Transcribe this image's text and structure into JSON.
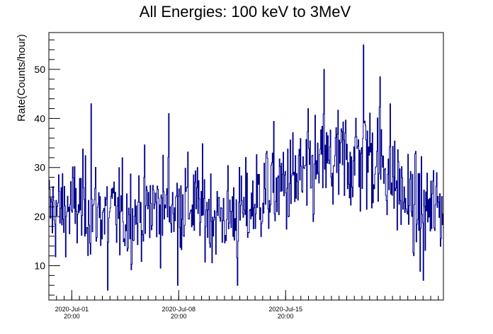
{
  "chart_data": {
    "type": "line",
    "title": "All Energies:  100 keV to 3MeV",
    "xlabel": "",
    "ylabel": "Rate(Counts/hour)",
    "x_start": "2020-06-30T08:00",
    "x_end": "2020-07-26T04:00",
    "bin": "1 hour",
    "ylim": [
      3,
      57.5
    ],
    "yticks": [
      10,
      20,
      30,
      40,
      50
    ],
    "xticks": [
      {
        "date": "2020-Jul-01",
        "time": "20:00",
        "x": "2020-07-01T20:00"
      },
      {
        "date": "2020-Jul-08",
        "time": "20:00",
        "x": "2020-07-08T20:00"
      },
      {
        "date": "2020-Jul-15",
        "time": "20:00",
        "x": "2020-07-15T20:00"
      }
    ],
    "line_color": "#00008b",
    "grid": false,
    "series": [
      {
        "trend": [
          {
            "x": "2020-06-30T08:00",
            "y": 21
          },
          {
            "x": "2020-07-02T08:00",
            "y": 22
          },
          {
            "x": "2020-07-05T08:00",
            "y": 20
          },
          {
            "x": "2020-07-07T08:00",
            "y": 22
          },
          {
            "x": "2020-07-09T08:00",
            "y": 23
          },
          {
            "x": "2020-07-11T08:00",
            "y": 20
          },
          {
            "x": "2020-07-13T08:00",
            "y": 21
          },
          {
            "x": "2020-07-14T08:00",
            "y": 25
          },
          {
            "x": "2020-07-16T08:00",
            "y": 27
          },
          {
            "x": "2020-07-18T08:00",
            "y": 30
          },
          {
            "x": "2020-07-20T08:00",
            "y": 32
          },
          {
            "x": "2020-07-21T08:00",
            "y": 33
          },
          {
            "x": "2020-07-22T08:00",
            "y": 31
          },
          {
            "x": "2020-07-23T08:00",
            "y": 25
          },
          {
            "x": "2020-07-24T08:00",
            "y": 21
          },
          {
            "x": "2020-07-26T04:00",
            "y": 22
          }
        ],
        "peaks": [
          {
            "x": "2020-07-03T02:00",
            "y": 43
          },
          {
            "x": "2020-07-08T04:00",
            "y": 41
          },
          {
            "x": "2020-07-18T08:00",
            "y": 50
          },
          {
            "x": "2020-07-20T22:00",
            "y": 55
          },
          {
            "x": "2020-07-22T00:00",
            "y": 48.5
          },
          {
            "x": "2020-07-22T16:00",
            "y": 43
          },
          {
            "x": "2020-07-04T04:00",
            "y": 5
          },
          {
            "x": "2020-07-08T18:00",
            "y": 6
          },
          {
            "x": "2020-07-12T16:00",
            "y": 6
          },
          {
            "x": "2020-07-24T20:00",
            "y": 7
          }
        ]
      }
    ]
  }
}
